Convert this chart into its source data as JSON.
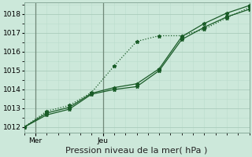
{
  "xlabel": "Pression niveau de la mer( hPa )",
  "bg_color": "#cce8da",
  "plot_bg_color": "#cce8da",
  "grid_major_color": "#aaccbb",
  "grid_minor_color": "#bbddcc",
  "line_color": "#1a5c28",
  "day_line_color": "#708878",
  "ylim": [
    1011.7,
    1018.6
  ],
  "yticks": [
    1012,
    1013,
    1014,
    1015,
    1016,
    1017,
    1018
  ],
  "xlim": [
    0,
    10
  ],
  "day_positions": [
    0.5,
    3.5
  ],
  "day_labels": [
    "Mer",
    "Jeu"
  ],
  "series_dotted_x": [
    0,
    1,
    2,
    3,
    4,
    5,
    6,
    7,
    8,
    9,
    10
  ],
  "series_dotted_y": [
    1012.0,
    1012.85,
    1013.15,
    1013.85,
    1015.25,
    1016.55,
    1016.85,
    1016.85,
    1017.2,
    1017.8,
    1018.35
  ],
  "series_solid1_x": [
    0,
    1,
    2,
    3,
    4,
    5,
    6,
    7,
    8,
    9,
    10
  ],
  "series_solid1_y": [
    1012.0,
    1012.75,
    1013.05,
    1013.8,
    1014.1,
    1014.3,
    1015.1,
    1016.8,
    1017.5,
    1018.05,
    1018.45
  ],
  "series_solid2_x": [
    0,
    1,
    2,
    3,
    4,
    5,
    6,
    7,
    8,
    9,
    10
  ],
  "series_solid2_y": [
    1012.0,
    1012.65,
    1012.95,
    1013.75,
    1014.0,
    1014.15,
    1015.0,
    1016.65,
    1017.3,
    1017.85,
    1018.25
  ],
  "xlabel_fontsize": 8,
  "tick_fontsize": 6.5
}
